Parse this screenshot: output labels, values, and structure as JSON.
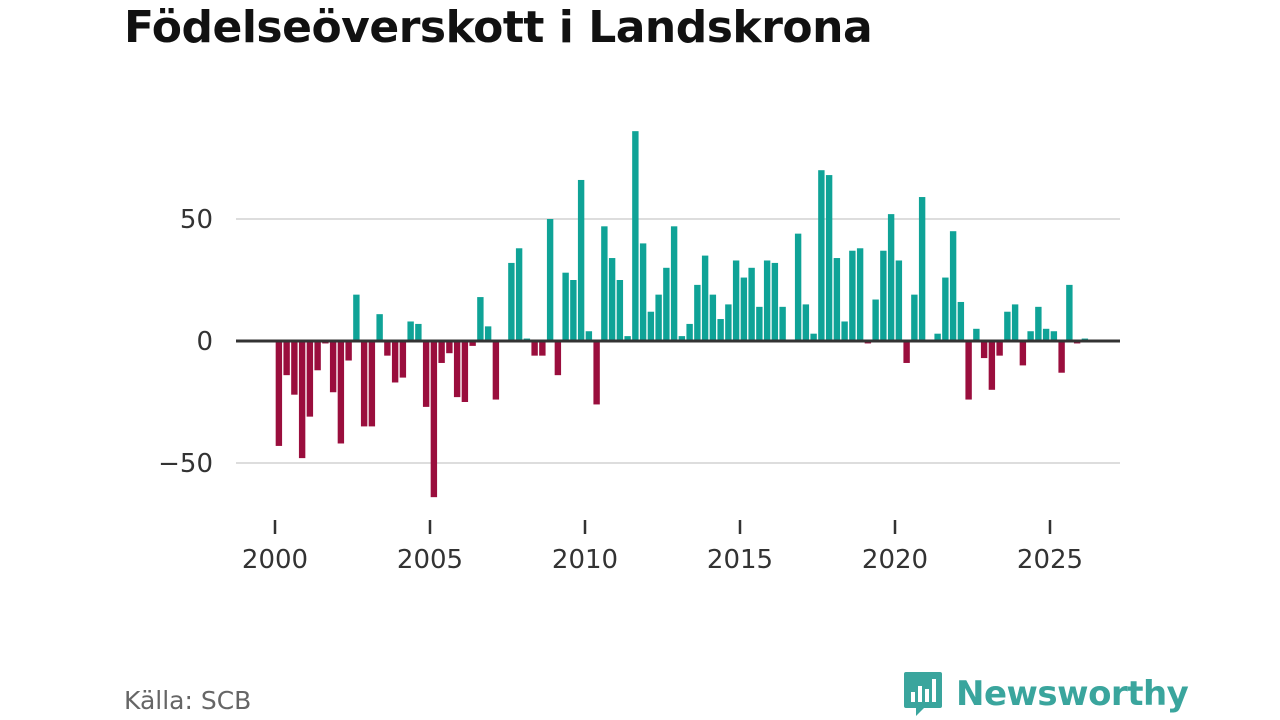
{
  "chart_data": {
    "type": "bar",
    "title": "Födelseöverskott i Landskrona",
    "source": "Källa: SCB",
    "brand": "Newsworthy",
    "xlabel": "",
    "ylabel": "",
    "ylim": [
      -70,
      90
    ],
    "xlim": [
      1997.6,
      2027.5
    ],
    "y_ticks": [
      -50,
      0,
      50
    ],
    "y_tick_labels": [
      "−50",
      "0",
      "50"
    ],
    "x_ticks": [
      2000,
      2005,
      2010,
      2015,
      2020,
      2025
    ],
    "x_tick_labels": [
      "2000",
      "2005",
      "2010",
      "2015",
      "2020",
      "2025"
    ],
    "grid": true,
    "colors": {
      "positive": "#0fa397",
      "negative": "#9a0e3d",
      "zero_line": "#333333",
      "grid": "#dddddd",
      "brand": "#3aa59d"
    },
    "x_start": 2000.125,
    "x_step": 0.25,
    "values": [
      -43,
      -14,
      -22,
      -48,
      -31,
      -12,
      -1,
      -21,
      -42,
      -8,
      19,
      -35,
      -35,
      11,
      -6,
      -17,
      -15,
      8,
      7,
      -27,
      -64,
      -9,
      -5,
      -23,
      -25,
      -2,
      18,
      6,
      -24,
      0,
      32,
      38,
      1,
      -6,
      -6,
      50,
      -14,
      28,
      25,
      66,
      4,
      -26,
      47,
      34,
      25,
      2,
      86,
      40,
      12,
      19,
      30,
      47,
      2,
      7,
      23,
      35,
      19,
      9,
      15,
      33,
      26,
      30,
      14,
      33,
      32,
      14,
      0,
      44,
      15,
      3,
      70,
      68,
      34,
      8,
      37,
      38,
      -1,
      17,
      37,
      52,
      33,
      -9,
      19,
      59,
      0,
      3,
      26,
      45,
      16,
      -24,
      5,
      -7,
      -20,
      -6,
      12,
      15,
      -10,
      4,
      14,
      5,
      4,
      -13,
      23,
      -1,
      1
    ]
  }
}
